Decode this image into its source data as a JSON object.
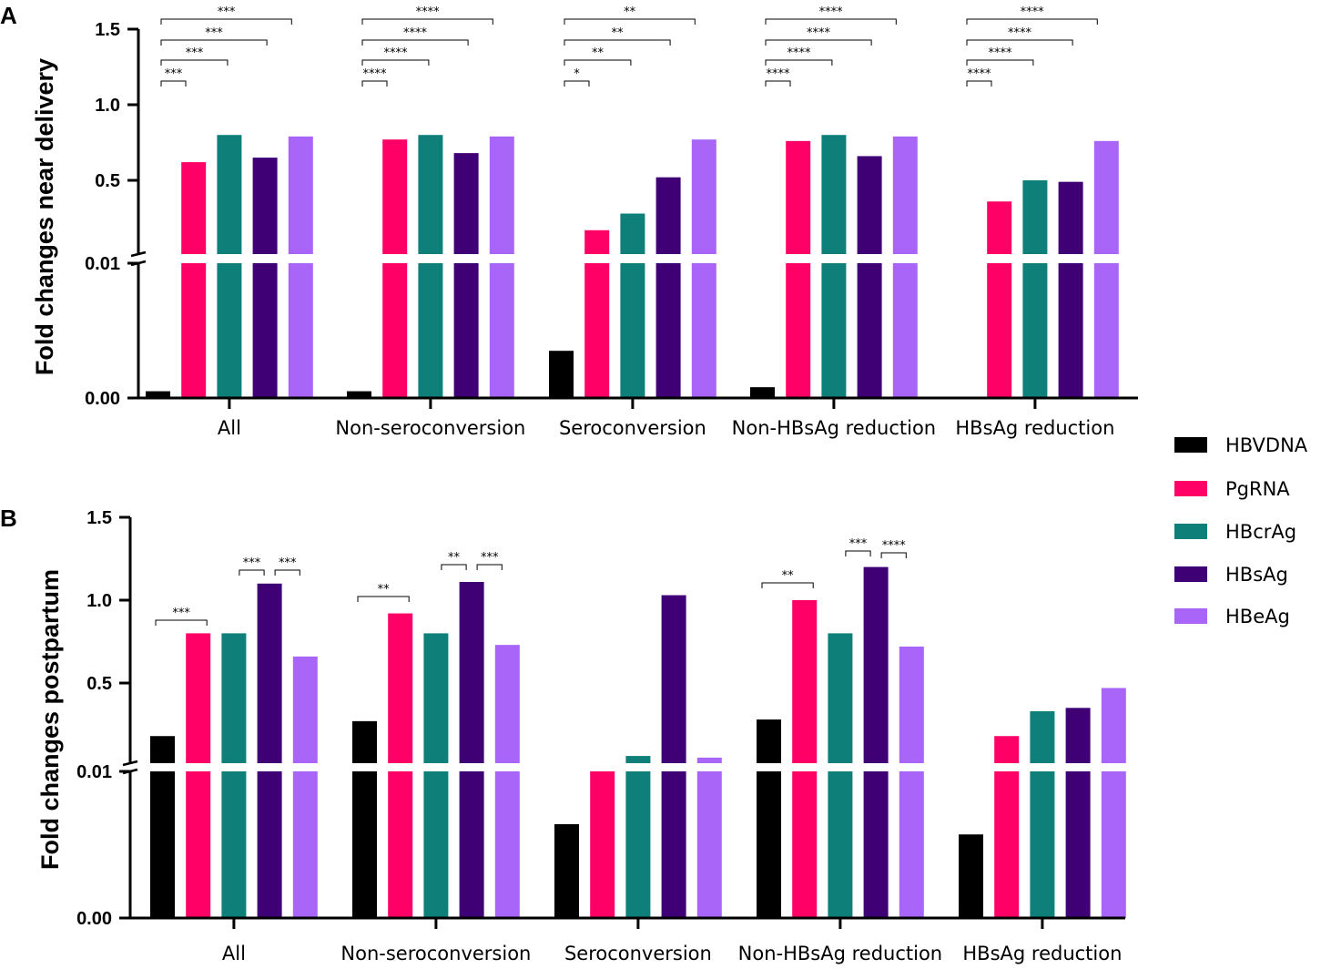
{
  "chart_data": [
    {
      "panel": "A",
      "type": "bar",
      "ylabel": "Fold changes near delivery",
      "categories": [
        "All",
        "Non-seroconversion",
        "Seroconversion",
        "Non-HBsAg reduction",
        "HBsAg reduction"
      ],
      "yticks": [
        "0.00",
        "0.01",
        "0.5",
        "1.0",
        "1.5"
      ],
      "axis_break": "between 0.01 and 0.5",
      "series": [
        {
          "name": "HBVDNA",
          "color": "#000000",
          "values": [
            0.0005,
            0.0005,
            0.0035,
            0.0008,
            0.0
          ]
        },
        {
          "name": "PgRNA",
          "color": "#FF0066",
          "values": [
            0.62,
            0.77,
            0.17,
            0.76,
            0.36
          ]
        },
        {
          "name": "HBcrAg",
          "color": "#0F7F7A",
          "values": [
            0.8,
            0.8,
            0.28,
            0.8,
            0.5
          ]
        },
        {
          "name": "HBsAg",
          "color": "#3F0075",
          "values": [
            0.65,
            0.68,
            0.52,
            0.66,
            0.49
          ]
        },
        {
          "name": "HBeAg",
          "color": "#A865F8",
          "values": [
            0.79,
            0.79,
            0.77,
            0.79,
            0.76
          ]
        }
      ],
      "significance": [
        {
          "group": 0,
          "from": 0,
          "to": 1,
          "label": "***"
        },
        {
          "group": 0,
          "from": 0,
          "to": 2,
          "label": "***"
        },
        {
          "group": 0,
          "from": 0,
          "to": 3,
          "label": "***"
        },
        {
          "group": 0,
          "from": 0,
          "to": 4,
          "label": "***"
        },
        {
          "group": 1,
          "from": 0,
          "to": 1,
          "label": "****"
        },
        {
          "group": 1,
          "from": 0,
          "to": 2,
          "label": "****"
        },
        {
          "group": 1,
          "from": 0,
          "to": 3,
          "label": "****"
        },
        {
          "group": 1,
          "from": 0,
          "to": 4,
          "label": "****"
        },
        {
          "group": 2,
          "from": 0,
          "to": 1,
          "label": "*"
        },
        {
          "group": 2,
          "from": 0,
          "to": 2,
          "label": "**"
        },
        {
          "group": 2,
          "from": 0,
          "to": 3,
          "label": "**"
        },
        {
          "group": 2,
          "from": 0,
          "to": 4,
          "label": "**"
        },
        {
          "group": 3,
          "from": 0,
          "to": 1,
          "label": "****"
        },
        {
          "group": 3,
          "from": 0,
          "to": 2,
          "label": "****"
        },
        {
          "group": 3,
          "from": 0,
          "to": 3,
          "label": "****"
        },
        {
          "group": 3,
          "from": 0,
          "to": 4,
          "label": "****"
        },
        {
          "group": 4,
          "from": 0,
          "to": 1,
          "label": "****"
        },
        {
          "group": 4,
          "from": 0,
          "to": 2,
          "label": "****"
        },
        {
          "group": 4,
          "from": 0,
          "to": 3,
          "label": "****"
        },
        {
          "group": 4,
          "from": 0,
          "to": 4,
          "label": "****"
        }
      ]
    },
    {
      "panel": "B",
      "type": "bar",
      "ylabel": "Fold changes postpartum",
      "categories": [
        "All",
        "Non-seroconversion",
        "Seroconversion",
        "Non-HBsAg reduction",
        "HBsAg reduction"
      ],
      "yticks": [
        "0.00",
        "0.01",
        "0.5",
        "1.0",
        "1.5"
      ],
      "axis_break": "between 0.01 and 0.5",
      "series": [
        {
          "name": "HBVDNA",
          "color": "#000000",
          "values": [
            0.18,
            0.27,
            0.0064,
            0.28,
            0.0057
          ]
        },
        {
          "name": "PgRNA",
          "color": "#FF0066",
          "values": [
            0.8,
            0.92,
            0.01,
            1.0,
            0.18
          ]
        },
        {
          "name": "HBcrAg",
          "color": "#0F7F7A",
          "values": [
            0.8,
            0.8,
            0.06,
            0.8,
            0.33
          ]
        },
        {
          "name": "HBsAg",
          "color": "#3F0075",
          "values": [
            1.1,
            1.11,
            1.03,
            1.2,
            0.35
          ]
        },
        {
          "name": "HBeAg",
          "color": "#A865F8",
          "values": [
            0.66,
            0.73,
            0.05,
            0.72,
            0.47
          ]
        }
      ],
      "significance": [
        {
          "group": 0,
          "from": 0,
          "to": 1,
          "label": "***"
        },
        {
          "group": 0,
          "from": 2,
          "to": 3,
          "label": "***"
        },
        {
          "group": 0,
          "from": 3,
          "to": 4,
          "label": "***"
        },
        {
          "group": 1,
          "from": 0,
          "to": 1,
          "label": "**"
        },
        {
          "group": 1,
          "from": 2,
          "to": 3,
          "label": "**"
        },
        {
          "group": 1,
          "from": 3,
          "to": 4,
          "label": "***"
        },
        {
          "group": 3,
          "from": 0,
          "to": 1,
          "label": "**"
        },
        {
          "group": 3,
          "from": 2,
          "to": 3,
          "label": "***"
        },
        {
          "group": 3,
          "from": 3,
          "to": 4,
          "label": "****"
        }
      ]
    }
  ],
  "legend": {
    "items": [
      {
        "label": "HBVDNA",
        "color": "#000000"
      },
      {
        "label": "PgRNA",
        "color": "#FF0066"
      },
      {
        "label": "HBcrAg",
        "color": "#0F7F7A"
      },
      {
        "label": "HBsAg",
        "color": "#3F0075"
      },
      {
        "label": "HBeAg",
        "color": "#A865F8"
      }
    ]
  }
}
